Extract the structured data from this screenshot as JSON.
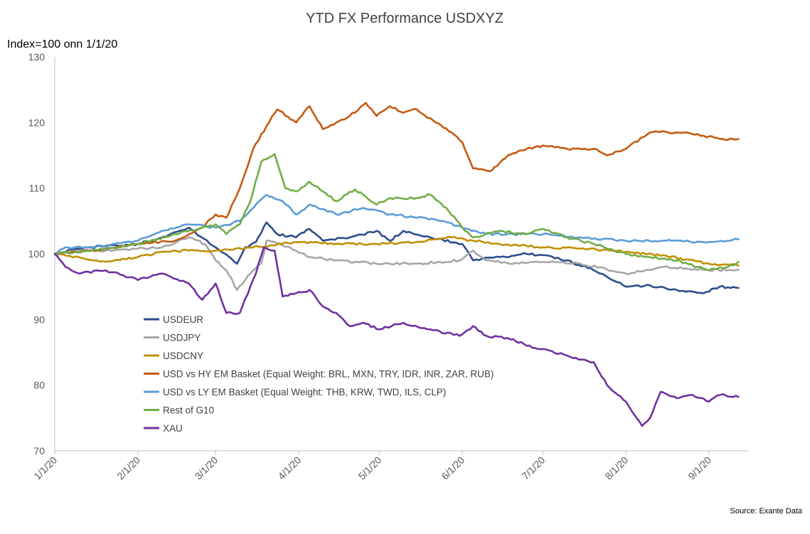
{
  "chart_data": {
    "type": "line",
    "title": "YTD FX Performance USDXYZ",
    "ylabel": "Index=100 onn 1/1/20",
    "xlabel": "",
    "source": "Source: Exante Data",
    "ylim": [
      70,
      130
    ],
    "yticks": [
      70,
      80,
      90,
      100,
      110,
      120,
      130
    ],
    "xlim": [
      "2020-01-01",
      "2020-09-12"
    ],
    "xticks": [
      "1/1/20",
      "2/1/20",
      "3/1/20",
      "4/1/20",
      "5/1/20",
      "6/1/20",
      "7/1/20",
      "8/1/20",
      "9/1/20"
    ],
    "xtick_dates": [
      "2020-01-01",
      "2020-02-01",
      "2020-03-01",
      "2020-04-01",
      "2020-05-01",
      "2020-06-01",
      "2020-07-01",
      "2020-08-01",
      "2020-09-01"
    ],
    "grid": false,
    "legend_position": "lower-left inside plot",
    "series": [
      {
        "name": "USDEUR",
        "color": "#2E4D8C",
        "points": [
          [
            "2020-01-01",
            100
          ],
          [
            "2020-01-10",
            100.8
          ],
          [
            "2020-01-20",
            101.2
          ],
          [
            "2020-02-01",
            101.5
          ],
          [
            "2020-02-10",
            102.5
          ],
          [
            "2020-02-20",
            104
          ],
          [
            "2020-03-01",
            101
          ],
          [
            "2020-03-09",
            98.5
          ],
          [
            "2020-03-12",
            101
          ],
          [
            "2020-03-16",
            101.8
          ],
          [
            "2020-03-20",
            104.8
          ],
          [
            "2020-03-24",
            103
          ],
          [
            "2020-03-31",
            102.5
          ],
          [
            "2020-04-05",
            103.8
          ],
          [
            "2020-04-10",
            102
          ],
          [
            "2020-04-20",
            102.5
          ],
          [
            "2020-04-30",
            103.5
          ],
          [
            "2020-05-05",
            102
          ],
          [
            "2020-05-10",
            103.5
          ],
          [
            "2020-05-20",
            102.5
          ],
          [
            "2020-06-01",
            101.5
          ],
          [
            "2020-06-05",
            99
          ],
          [
            "2020-06-15",
            99.5
          ],
          [
            "2020-06-25",
            100
          ],
          [
            "2020-07-01",
            99.8
          ],
          [
            "2020-07-10",
            99
          ],
          [
            "2020-07-20",
            97.5
          ],
          [
            "2020-08-01",
            95
          ],
          [
            "2020-08-10",
            95.2
          ],
          [
            "2020-08-20",
            94.5
          ],
          [
            "2020-08-30",
            94
          ],
          [
            "2020-09-05",
            95
          ],
          [
            "2020-09-12",
            94.8
          ]
        ]
      },
      {
        "name": "USDJPY",
        "color": "#A6A6A6",
        "points": [
          [
            "2020-01-01",
            100
          ],
          [
            "2020-01-10",
            100.5
          ],
          [
            "2020-01-20",
            100.5
          ],
          [
            "2020-02-01",
            100.8
          ],
          [
            "2020-02-10",
            101
          ],
          [
            "2020-02-20",
            102.5
          ],
          [
            "2020-02-26",
            101.5
          ],
          [
            "2020-03-01",
            99
          ],
          [
            "2020-03-05",
            97.5
          ],
          [
            "2020-03-09",
            94.5
          ],
          [
            "2020-03-14",
            97
          ],
          [
            "2020-03-18",
            98.5
          ],
          [
            "2020-03-20",
            102
          ],
          [
            "2020-03-25",
            101.5
          ],
          [
            "2020-03-31",
            100.5
          ],
          [
            "2020-04-05",
            99.5
          ],
          [
            "2020-04-15",
            99
          ],
          [
            "2020-04-30",
            98.5
          ],
          [
            "2020-05-15",
            98.5
          ],
          [
            "2020-05-31",
            99
          ],
          [
            "2020-06-05",
            100.5
          ],
          [
            "2020-06-10",
            99
          ],
          [
            "2020-06-20",
            98.5
          ],
          [
            "2020-07-01",
            98.8
          ],
          [
            "2020-07-15",
            98.5
          ],
          [
            "2020-08-01",
            97
          ],
          [
            "2020-08-15",
            98
          ],
          [
            "2020-09-01",
            97.5
          ],
          [
            "2020-09-12",
            97.6
          ]
        ]
      },
      {
        "name": "USDCNY",
        "color": "#C09000",
        "points": [
          [
            "2020-01-01",
            100
          ],
          [
            "2020-01-10",
            99.5
          ],
          [
            "2020-01-20",
            98.8
          ],
          [
            "2020-02-01",
            99.5
          ],
          [
            "2020-02-10",
            100.3
          ],
          [
            "2020-02-20",
            100.5
          ],
          [
            "2020-03-01",
            100.5
          ],
          [
            "2020-03-15",
            101
          ],
          [
            "2020-03-31",
            101.8
          ],
          [
            "2020-04-15",
            101.5
          ],
          [
            "2020-04-30",
            101.5
          ],
          [
            "2020-05-15",
            101.8
          ],
          [
            "2020-05-28",
            102.5
          ],
          [
            "2020-06-05",
            102
          ],
          [
            "2020-06-15",
            101.5
          ],
          [
            "2020-07-01",
            101
          ],
          [
            "2020-07-15",
            100.8
          ],
          [
            "2020-08-01",
            100.3
          ],
          [
            "2020-08-15",
            99.8
          ],
          [
            "2020-09-01",
            98.5
          ],
          [
            "2020-09-12",
            98.2
          ]
        ]
      },
      {
        "name": "USD vs HY EM Basket (Equal Weight: BRL, MXN, TRY, IDR, INR, ZAR, RUB)",
        "color": "#C55A11",
        "points": [
          [
            "2020-01-01",
            100
          ],
          [
            "2020-01-15",
            100.5
          ],
          [
            "2020-02-01",
            101.5
          ],
          [
            "2020-02-15",
            102
          ],
          [
            "2020-02-25",
            104
          ],
          [
            "2020-03-01",
            106
          ],
          [
            "2020-03-05",
            105.5
          ],
          [
            "2020-03-10",
            110
          ],
          [
            "2020-03-15",
            116
          ],
          [
            "2020-03-20",
            119.5
          ],
          [
            "2020-03-24",
            122
          ],
          [
            "2020-03-31",
            120
          ],
          [
            "2020-04-05",
            122.5
          ],
          [
            "2020-04-10",
            119
          ],
          [
            "2020-04-15",
            120
          ],
          [
            "2020-04-20",
            121
          ],
          [
            "2020-04-26",
            123
          ],
          [
            "2020-04-30",
            121
          ],
          [
            "2020-05-05",
            122.5
          ],
          [
            "2020-05-10",
            121.5
          ],
          [
            "2020-05-15",
            122
          ],
          [
            "2020-05-22",
            120
          ],
          [
            "2020-05-28",
            118.5
          ],
          [
            "2020-06-01",
            117
          ],
          [
            "2020-06-05",
            113
          ],
          [
            "2020-06-12",
            112.7
          ],
          [
            "2020-06-18",
            115
          ],
          [
            "2020-06-25",
            116
          ],
          [
            "2020-07-01",
            116.5
          ],
          [
            "2020-07-10",
            116
          ],
          [
            "2020-07-20",
            116
          ],
          [
            "2020-07-25",
            115
          ],
          [
            "2020-08-01",
            116
          ],
          [
            "2020-08-10",
            118.5
          ],
          [
            "2020-08-20",
            118.5
          ],
          [
            "2020-08-30",
            118
          ],
          [
            "2020-09-05",
            117.5
          ],
          [
            "2020-09-12",
            117.5
          ]
        ]
      },
      {
        "name": "USD vs LY EM Basket (Equal Weight: THB, KRW, TWD, ILS, CLP)",
        "color": "#5B9BD5",
        "points": [
          [
            "2020-01-01",
            100
          ],
          [
            "2020-01-05",
            101
          ],
          [
            "2020-01-15",
            101
          ],
          [
            "2020-02-01",
            102
          ],
          [
            "2020-02-10",
            103.5
          ],
          [
            "2020-02-20",
            104.5
          ],
          [
            "2020-03-01",
            104
          ],
          [
            "2020-03-10",
            105
          ],
          [
            "2020-03-16",
            107.5
          ],
          [
            "2020-03-20",
            109
          ],
          [
            "2020-03-26",
            108
          ],
          [
            "2020-03-31",
            106
          ],
          [
            "2020-04-05",
            107.5
          ],
          [
            "2020-04-15",
            106
          ],
          [
            "2020-04-25",
            107
          ],
          [
            "2020-05-05",
            106
          ],
          [
            "2020-05-15",
            105.5
          ],
          [
            "2020-05-25",
            105
          ],
          [
            "2020-06-01",
            104
          ],
          [
            "2020-06-10",
            103
          ],
          [
            "2020-06-20",
            103
          ],
          [
            "2020-07-01",
            103
          ],
          [
            "2020-07-15",
            102.5
          ],
          [
            "2020-08-01",
            102
          ],
          [
            "2020-08-15",
            102
          ],
          [
            "2020-08-30",
            101.8
          ],
          [
            "2020-09-12",
            102.2
          ]
        ]
      },
      {
        "name": "Rest of G10",
        "color": "#70AD47",
        "points": [
          [
            "2020-01-01",
            100
          ],
          [
            "2020-01-15",
            100.5
          ],
          [
            "2020-02-01",
            101.5
          ],
          [
            "2020-02-15",
            103
          ],
          [
            "2020-02-25",
            104
          ],
          [
            "2020-03-01",
            104.5
          ],
          [
            "2020-03-05",
            103
          ],
          [
            "2020-03-10",
            104.5
          ],
          [
            "2020-03-14",
            108
          ],
          [
            "2020-03-18",
            114
          ],
          [
            "2020-03-23",
            115.2
          ],
          [
            "2020-03-27",
            110
          ],
          [
            "2020-03-31",
            109.5
          ],
          [
            "2020-04-05",
            111
          ],
          [
            "2020-04-10",
            109.5
          ],
          [
            "2020-04-15",
            108
          ],
          [
            "2020-04-22",
            109.8
          ],
          [
            "2020-04-30",
            107.5
          ],
          [
            "2020-05-05",
            108.5
          ],
          [
            "2020-05-15",
            108.5
          ],
          [
            "2020-05-20",
            109
          ],
          [
            "2020-05-26",
            107
          ],
          [
            "2020-06-01",
            104
          ],
          [
            "2020-06-05",
            102.5
          ],
          [
            "2020-06-15",
            103.5
          ],
          [
            "2020-06-25",
            103
          ],
          [
            "2020-07-01",
            103.8
          ],
          [
            "2020-07-10",
            102.5
          ],
          [
            "2020-07-20",
            101.5
          ],
          [
            "2020-08-01",
            100
          ],
          [
            "2020-08-10",
            99.5
          ],
          [
            "2020-08-20",
            99
          ],
          [
            "2020-09-01",
            97.5
          ],
          [
            "2020-09-08",
            98
          ],
          [
            "2020-09-12",
            98.8
          ]
        ]
      },
      {
        "name": "XAU",
        "color": "#7030A0",
        "points": [
          [
            "2020-01-01",
            100
          ],
          [
            "2020-01-05",
            98
          ],
          [
            "2020-01-10",
            97
          ],
          [
            "2020-01-20",
            97.5
          ],
          [
            "2020-02-01",
            96
          ],
          [
            "2020-02-10",
            97
          ],
          [
            "2020-02-20",
            95.5
          ],
          [
            "2020-02-25",
            93
          ],
          [
            "2020-03-01",
            95.5
          ],
          [
            "2020-03-05",
            91
          ],
          [
            "2020-03-10",
            91
          ],
          [
            "2020-03-16",
            97
          ],
          [
            "2020-03-19",
            101
          ],
          [
            "2020-03-23",
            100.5
          ],
          [
            "2020-03-26",
            93.5
          ],
          [
            "2020-03-31",
            94
          ],
          [
            "2020-04-05",
            94.5
          ],
          [
            "2020-04-10",
            92
          ],
          [
            "2020-04-15",
            91
          ],
          [
            "2020-04-20",
            89
          ],
          [
            "2020-04-25",
            89.5
          ],
          [
            "2020-05-01",
            88.5
          ],
          [
            "2020-05-10",
            89.5
          ],
          [
            "2020-05-20",
            88.5
          ],
          [
            "2020-05-31",
            87.5
          ],
          [
            "2020-06-05",
            89
          ],
          [
            "2020-06-10",
            87.5
          ],
          [
            "2020-06-20",
            87
          ],
          [
            "2020-06-25",
            86
          ],
          [
            "2020-07-01",
            85.5
          ],
          [
            "2020-07-10",
            84.5
          ],
          [
            "2020-07-20",
            83.5
          ],
          [
            "2020-07-25",
            80
          ],
          [
            "2020-08-01",
            77.5
          ],
          [
            "2020-08-07",
            73.8
          ],
          [
            "2020-08-10",
            75
          ],
          [
            "2020-08-14",
            79
          ],
          [
            "2020-08-20",
            78
          ],
          [
            "2020-08-25",
            78.5
          ],
          [
            "2020-09-01",
            77.5
          ],
          [
            "2020-09-05",
            78.5
          ],
          [
            "2020-09-12",
            78.2
          ]
        ]
      }
    ]
  }
}
